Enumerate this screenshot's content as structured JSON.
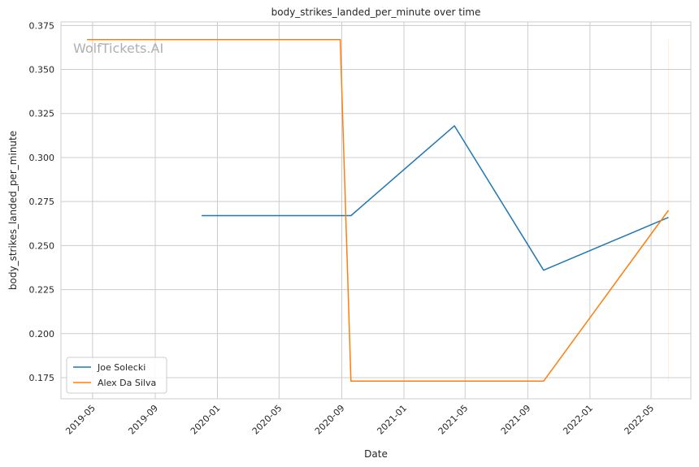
{
  "chart_data": {
    "type": "line",
    "title": "body_strikes_landed_per_minute over time",
    "xlabel": "Date",
    "ylabel": "body_strikes_landed_per_minute",
    "watermark": "WolfTickets.AI",
    "xlim": [
      "2019-02-28",
      "2022-07-18"
    ],
    "ylim": [
      0.163,
      0.377
    ],
    "x_ticks": [
      "2019-05",
      "2019-09",
      "2020-01",
      "2020-05",
      "2020-09",
      "2021-01",
      "2021-05",
      "2021-09",
      "2022-01",
      "2022-05"
    ],
    "y_ticks": [
      0.175,
      0.2,
      0.225,
      0.25,
      0.275,
      0.3,
      0.325,
      0.35,
      0.375
    ],
    "y_tick_labels": [
      "0.175",
      "0.200",
      "0.225",
      "0.250",
      "0.275",
      "0.300",
      "0.325",
      "0.350",
      "0.375"
    ],
    "grid": true,
    "legend_position": "lower-left",
    "series": [
      {
        "name": "Joe Solecki",
        "color": "#1f77b4",
        "points": [
          {
            "x": "2019-12-01",
            "y": 0.267
          },
          {
            "x": "2020-09-19",
            "y": 0.267
          },
          {
            "x": "2021-04-10",
            "y": 0.318
          },
          {
            "x": "2021-10-02",
            "y": 0.236
          },
          {
            "x": "2022-06-04",
            "y": 0.266
          }
        ]
      },
      {
        "name": "Alex Da Silva",
        "color": "#ff7f0e",
        "points": [
          {
            "x": "2019-04-20",
            "y": 0.367
          },
          {
            "x": "2020-08-29",
            "y": 0.367
          },
          {
            "x": "2020-09-19",
            "y": 0.173
          },
          {
            "x": "2021-10-02",
            "y": 0.173
          },
          {
            "x": "2022-06-04",
            "y": 0.27
          }
        ]
      }
    ],
    "annotation_line": {
      "x": "2022-06-04",
      "y_min": 0.173,
      "y_max": 0.367,
      "color": "#ff7f0e",
      "opacity": 0.15
    }
  }
}
